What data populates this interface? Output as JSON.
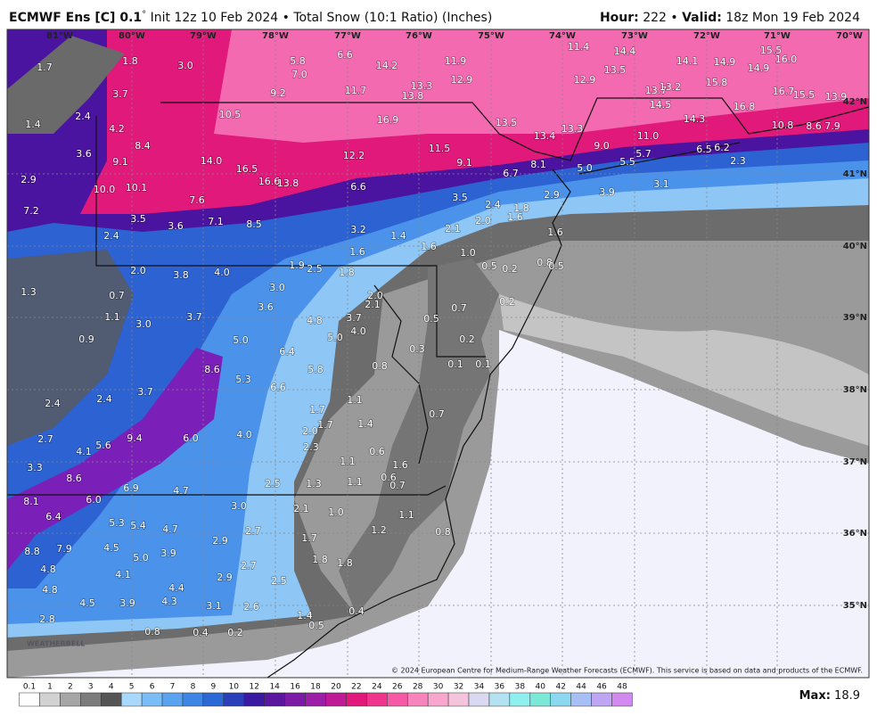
{
  "header": {
    "model": "ECMWF Ens [C] 0.1",
    "degree": "°",
    "run": " Init 12z 10 Feb 2024 • Total Snow (10:1 Ratio) (Inches)",
    "hour_label": "Hour:",
    "hour": " 222 • ",
    "valid_label": "Valid:",
    "valid": " 18z Mon 19 Feb 2024"
  },
  "map": {
    "longitudes": [
      "81°W",
      "80°W",
      "79°W",
      "78°W",
      "77°W",
      "76°W",
      "75°W",
      "74°W",
      "73°W",
      "72°W",
      "71°W",
      "70°W"
    ],
    "latitudes": [
      "42°N",
      "41°N",
      "40°N",
      "39°N",
      "38°N",
      "37°N",
      "36°N",
      "35°N"
    ],
    "point_labels": [
      "1.7",
      "1.8",
      "3.0",
      "5.8",
      "6.6",
      "14.2",
      "11.9",
      "11.4",
      "14.4",
      "14.1",
      "14.9",
      "15.5",
      "16.0",
      "14.9",
      "7.0",
      "9.2",
      "11.7",
      "13.3",
      "13.8",
      "12.9",
      "12.9",
      "13.5",
      "13.7",
      "13.2",
      "15.8",
      "16.7",
      "15.5",
      "13.9",
      "3.7",
      "1.4",
      "2.4",
      "4.2",
      "10.5",
      "16.9",
      "13.5",
      "13.4",
      "13.3",
      "14.5",
      "14.3",
      "16.8",
      "10.8",
      "8.6",
      "7.9",
      "11.0",
      "9.0",
      "8.4",
      "3.6",
      "9.1",
      "14.0",
      "16.5",
      "12.2",
      "11.5",
      "9.1",
      "8.1",
      "6.7",
      "5.0",
      "5.5",
      "5.7",
      "6.5",
      "6.2",
      "2.3",
      "2.9",
      "10.0",
      "10.1",
      "16.6",
      "13.8",
      "6.6",
      "3.5",
      "2.9",
      "3.9",
      "3.1",
      "7.6",
      "7.2",
      "2.4",
      "1.8",
      "1.6",
      "2.0",
      "3.5",
      "3.6",
      "7.1",
      "8.5",
      "3.2",
      "2.4",
      "1.4",
      "1.6",
      "1.6",
      "2.1",
      "1.6",
      "1.0",
      "0.5",
      "0.2",
      "0.8",
      "0.5",
      "2.0",
      "3.8",
      "4.0",
      "1.9",
      "2.5",
      "1.8",
      "1.3",
      "0.7",
      "3.0",
      "2.0",
      "2.1",
      "0.2",
      "0.7",
      "1.1",
      "3.6",
      "3.7",
      "4.8",
      "3.7",
      "4.0",
      "5.0",
      "0.5",
      "3.0",
      "0.9",
      "5.0",
      "6.4",
      "0.3",
      "0.2",
      "0.1",
      "0.1",
      "0.8",
      "8.6",
      "5.8",
      "5.3",
      "6.6",
      "3.7",
      "2.4",
      "2.4",
      "1.1",
      "1.7",
      "0.7",
      "1.7",
      "1.4",
      "2.0",
      "9.4",
      "6.0",
      "4.0",
      "2.7",
      "5.6",
      "4.1",
      "2.3",
      "0.6",
      "3.3",
      "1.1",
      "1.6",
      "0.6",
      "8.6",
      "6.9",
      "4.7",
      "2.5",
      "1.3",
      "1.1",
      "0.7",
      "8.1",
      "6.0",
      "3.0",
      "2.1",
      "1.0",
      "1.1",
      "6.4",
      "5.3",
      "5.4",
      "4.7",
      "2.7",
      "1.2",
      "0.8",
      "1.7",
      "8.8",
      "7.9",
      "4.5",
      "2.9",
      "5.0",
      "3.9",
      "1.8",
      "1.8",
      "4.8",
      "4.1",
      "2.7",
      "2.9",
      "2.5",
      "4.4",
      "4.8",
      "4.5",
      "3.9",
      "4.3",
      "3.1",
      "2.6",
      "2.8",
      "1.4",
      "0.4",
      "0.8",
      "0.4",
      "0.2",
      "0.5"
    ],
    "watermark": "WEATHERBELL",
    "copyright": "© 2024 European Centre for Medium-Range Weather Forecasts (ECMWF). This service is based on data and products of the ECMWF."
  },
  "colorbar": {
    "labels": [
      "0.1",
      "1",
      "2",
      "3",
      "4",
      "5",
      "6",
      "7",
      "8",
      "9",
      "10",
      "12",
      "14",
      "16",
      "18",
      "20",
      "22",
      "24",
      "26",
      "28",
      "30",
      "32",
      "34",
      "36",
      "38",
      "40",
      "42",
      "44",
      "46",
      "48"
    ]
  },
  "max_label": "Max:",
  "max_value": " 18.9"
}
